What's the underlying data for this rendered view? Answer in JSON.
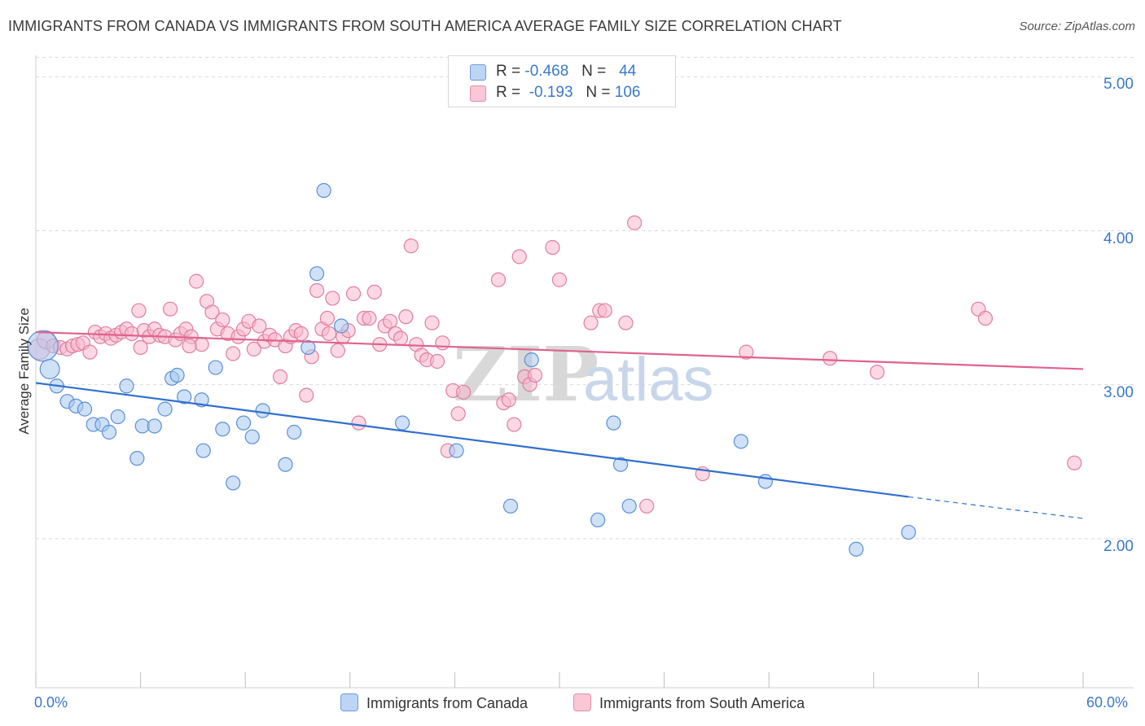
{
  "header": {
    "title": "IMMIGRANTS FROM CANADA VS IMMIGRANTS FROM SOUTH AMERICA AVERAGE FAMILY SIZE CORRELATION CHART",
    "source": "Source: ZipAtlas.com"
  },
  "legend_top": {
    "canada": {
      "r_label": "R =",
      "r_value": "-0.468",
      "n_label": "N =",
      "n_value": "44"
    },
    "south_america": {
      "r_label": "R =",
      "r_value": "-0.193",
      "n_label": "N =",
      "n_value": "106"
    }
  },
  "watermark": {
    "zip": "ZIP",
    "atlas": "atlas"
  },
  "colors": {
    "canada_fill": "#a8c8f0",
    "canada_stroke": "#5b8fd6",
    "canada_line": "#2f6fcf",
    "sa_fill": "#f7b8cc",
    "sa_stroke": "#e07ea0",
    "sa_line": "#e0628e",
    "axis_label": "#3a78c9",
    "grid": "#d9d9d9"
  },
  "chart_data": {
    "type": "scatter",
    "title": "IMMIGRANTS FROM CANADA VS IMMIGRANTS FROM SOUTH AMERICA AVERAGE FAMILY SIZE CORRELATION CHART",
    "xlabel": "",
    "ylabel": "Average Family Size",
    "xlim": [
      0,
      60
    ],
    "ylim": [
      1.0,
      5.15
    ],
    "x_tick_labels": [
      "0.0%",
      "60.0%"
    ],
    "y_ticks": [
      2.0,
      3.0,
      4.0,
      5.0
    ],
    "y_tick_labels": [
      "2.00",
      "3.00",
      "4.00",
      "5.00"
    ],
    "grid": "horizontal dashed",
    "legend_position": "bottom",
    "series": [
      {
        "name": "Immigrants from Canada",
        "r": -0.468,
        "n": 44,
        "trend": {
          "x0": 0,
          "y0": 2.98,
          "x1": 50,
          "y1": 2.24,
          "dashed_to_x": 60,
          "dashed_to_y": 2.1
        },
        "points": [
          [
            0.4,
            3.22,
            2.2
          ],
          [
            0.8,
            3.07,
            1.4
          ],
          [
            1.2,
            2.96,
            1
          ],
          [
            1.8,
            2.86,
            1
          ],
          [
            2.3,
            2.83,
            1
          ],
          [
            2.8,
            2.81,
            1
          ],
          [
            3.3,
            2.71,
            1
          ],
          [
            3.8,
            2.71,
            1
          ],
          [
            4.2,
            2.66,
            1
          ],
          [
            4.7,
            2.76,
            1
          ],
          [
            5.2,
            2.96,
            1
          ],
          [
            5.8,
            2.49,
            1
          ],
          [
            6.1,
            2.7,
            1
          ],
          [
            6.8,
            2.7,
            1
          ],
          [
            7.4,
            2.81,
            1
          ],
          [
            7.8,
            3.01,
            1
          ],
          [
            8.1,
            3.03,
            1
          ],
          [
            8.5,
            2.89,
            1
          ],
          [
            9.5,
            2.87,
            1
          ],
          [
            9.6,
            2.54,
            1
          ],
          [
            10.3,
            3.08,
            1
          ],
          [
            10.7,
            2.68,
            1
          ],
          [
            11.3,
            2.33,
            1
          ],
          [
            11.9,
            2.72,
            1
          ],
          [
            12.4,
            2.63,
            1
          ],
          [
            13.0,
            2.8,
            1
          ],
          [
            14.3,
            2.45,
            1
          ],
          [
            14.8,
            2.66,
            1
          ],
          [
            15.6,
            3.21,
            1
          ],
          [
            16.1,
            3.69,
            1
          ],
          [
            16.5,
            4.23,
            1
          ],
          [
            17.5,
            3.35,
            1
          ],
          [
            21.0,
            2.72,
            1
          ],
          [
            24.1,
            2.54,
            1
          ],
          [
            27.2,
            2.18,
            1
          ],
          [
            28.4,
            3.13,
            1
          ],
          [
            32.2,
            2.09,
            1
          ],
          [
            33.1,
            2.72,
            1
          ],
          [
            33.5,
            2.45,
            1
          ],
          [
            34.0,
            2.18,
            1
          ],
          [
            40.4,
            2.6,
            1
          ],
          [
            41.8,
            2.34,
            1
          ],
          [
            47.0,
            1.9,
            1
          ],
          [
            50.0,
            2.01,
            1
          ]
        ]
      },
      {
        "name": "Immigrants from South America",
        "r": -0.193,
        "n": 106,
        "trend": {
          "x0": 0,
          "y0": 3.31,
          "x1": 60,
          "y1": 3.07
        },
        "points": [
          [
            0.2,
            3.2,
            1.5
          ],
          [
            0.6,
            3.26,
            1.3
          ],
          [
            1.0,
            3.22,
            1
          ],
          [
            1.4,
            3.21,
            1
          ],
          [
            1.8,
            3.2,
            1
          ],
          [
            2.1,
            3.22,
            1
          ],
          [
            2.4,
            3.23,
            1
          ],
          [
            2.7,
            3.24,
            1
          ],
          [
            3.1,
            3.18,
            1
          ],
          [
            3.4,
            3.31,
            1
          ],
          [
            3.7,
            3.28,
            1
          ],
          [
            4.0,
            3.3,
            1
          ],
          [
            4.3,
            3.27,
            1
          ],
          [
            4.6,
            3.29,
            1
          ],
          [
            4.9,
            3.31,
            1
          ],
          [
            5.2,
            3.33,
            1
          ],
          [
            5.5,
            3.3,
            1
          ],
          [
            5.9,
            3.45,
            1
          ],
          [
            6.2,
            3.32,
            1
          ],
          [
            6.5,
            3.28,
            1
          ],
          [
            6.8,
            3.33,
            1
          ],
          [
            7.1,
            3.29,
            1
          ],
          [
            7.4,
            3.28,
            1
          ],
          [
            7.7,
            3.46,
            1
          ],
          [
            8.0,
            3.26,
            1
          ],
          [
            8.3,
            3.3,
            1
          ],
          [
            8.6,
            3.33,
            1
          ],
          [
            8.9,
            3.28,
            1
          ],
          [
            9.2,
            3.64,
            1
          ],
          [
            9.5,
            3.23,
            1
          ],
          [
            9.8,
            3.51,
            1
          ],
          [
            10.1,
            3.44,
            1
          ],
          [
            10.4,
            3.33,
            1
          ],
          [
            10.7,
            3.39,
            1
          ],
          [
            11.0,
            3.3,
            1
          ],
          [
            11.3,
            3.17,
            1
          ],
          [
            11.6,
            3.28,
            1
          ],
          [
            11.9,
            3.33,
            1
          ],
          [
            12.2,
            3.38,
            1
          ],
          [
            12.5,
            3.2,
            1
          ],
          [
            12.8,
            3.35,
            1
          ],
          [
            13.1,
            3.25,
            1
          ],
          [
            13.4,
            3.29,
            1
          ],
          [
            13.7,
            3.26,
            1
          ],
          [
            14.0,
            3.02,
            1
          ],
          [
            14.3,
            3.22,
            1
          ],
          [
            14.6,
            3.28,
            1
          ],
          [
            14.9,
            3.32,
            1
          ],
          [
            15.2,
            3.3,
            1
          ],
          [
            15.5,
            2.9,
            1
          ],
          [
            15.8,
            3.15,
            1
          ],
          [
            16.1,
            3.58,
            1
          ],
          [
            16.4,
            3.33,
            1
          ],
          [
            16.7,
            3.4,
            1
          ],
          [
            17.0,
            3.53,
            1
          ],
          [
            17.3,
            3.19,
            1
          ],
          [
            17.6,
            3.28,
            1
          ],
          [
            17.9,
            3.32,
            1
          ],
          [
            18.2,
            3.56,
            1
          ],
          [
            18.5,
            2.72,
            1
          ],
          [
            18.8,
            3.4,
            1
          ],
          [
            19.1,
            3.4,
            1
          ],
          [
            19.4,
            3.57,
            1
          ],
          [
            19.7,
            3.23,
            1
          ],
          [
            20.0,
            3.35,
            1
          ],
          [
            20.3,
            3.38,
            1
          ],
          [
            20.6,
            3.3,
            1
          ],
          [
            20.9,
            3.27,
            1
          ],
          [
            21.2,
            3.41,
            1
          ],
          [
            21.5,
            3.87,
            1
          ],
          [
            21.8,
            3.23,
            1
          ],
          [
            22.1,
            3.16,
            1
          ],
          [
            22.4,
            3.13,
            1
          ],
          [
            22.7,
            3.37,
            1
          ],
          [
            23.0,
            3.12,
            1
          ],
          [
            23.3,
            3.24,
            1
          ],
          [
            23.6,
            2.54,
            1
          ],
          [
            23.9,
            2.93,
            1
          ],
          [
            24.2,
            2.78,
            1
          ],
          [
            24.5,
            2.92,
            1
          ],
          [
            26.8,
            2.85,
            1
          ],
          [
            27.1,
            2.87,
            1
          ],
          [
            27.4,
            2.71,
            1
          ],
          [
            27.7,
            3.8,
            1
          ],
          [
            28.0,
            3.02,
            1
          ],
          [
            28.3,
            2.97,
            1
          ],
          [
            28.6,
            3.03,
            1
          ],
          [
            29.6,
            3.86,
            1
          ],
          [
            30.0,
            3.65,
            1
          ],
          [
            31.8,
            3.37,
            1
          ],
          [
            32.3,
            3.45,
            1
          ],
          [
            32.6,
            3.45,
            1
          ],
          [
            33.8,
            3.37,
            1
          ],
          [
            34.3,
            4.02,
            1
          ],
          [
            35.0,
            2.18,
            1
          ],
          [
            38.2,
            2.39,
            1
          ],
          [
            40.7,
            3.18,
            1
          ],
          [
            45.5,
            3.14,
            1
          ],
          [
            48.2,
            3.05,
            1
          ],
          [
            54.0,
            3.46,
            1
          ],
          [
            54.4,
            3.4,
            1
          ],
          [
            59.5,
            2.46,
            1
          ],
          [
            26.5,
            3.65,
            1
          ],
          [
            16.8,
            3.3,
            1
          ],
          [
            6.0,
            3.21,
            1
          ],
          [
            8.8,
            3.22,
            1
          ]
        ]
      }
    ]
  },
  "bottom_legend": {
    "canada": "Immigrants from Canada",
    "south_america": "Immigrants from South America"
  }
}
